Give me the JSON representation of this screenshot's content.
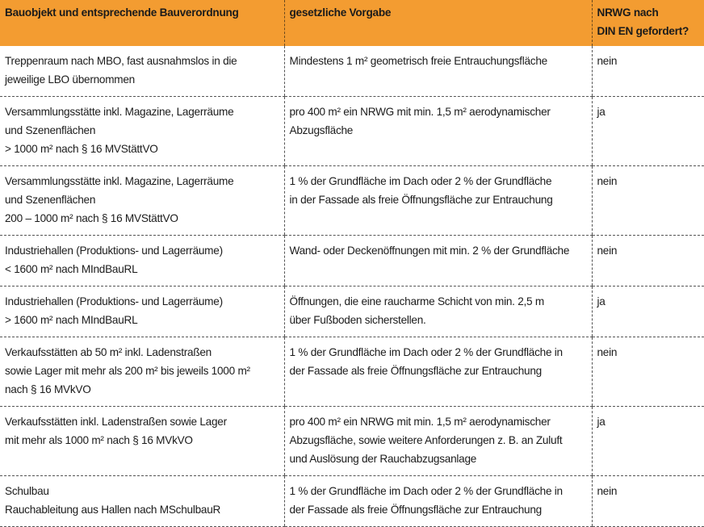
{
  "table": {
    "header": [
      [
        "Bauobjekt und entsprechende Bauverordnung"
      ],
      [
        "gesetzliche Vorgabe"
      ],
      [
        "NRWG nach",
        "DIN EN gefordert?"
      ]
    ],
    "rows": [
      [
        [
          "Treppenraum nach MBO, fast ausnahmslos in die",
          "jeweilige LBO übernommen"
        ],
        [
          "Mindestens 1 m² geometrisch freie Entrauchungsfläche"
        ],
        [
          "nein"
        ]
      ],
      [
        [
          "Versammlungsstätte inkl. Magazine, Lagerräume",
          "und Szenenflächen",
          "> 1000 m² nach § 16 MVStättVO"
        ],
        [
          "pro 400 m² ein NRWG mit min. 1,5 m² aerodynamischer",
          "Abzugsfläche"
        ],
        [
          "ja"
        ]
      ],
      [
        [
          "Versammlungsstätte inkl. Magazine, Lagerräume",
          "und Szenenflächen",
          "200 – 1000 m² nach § 16 MVStättVO"
        ],
        [
          "1 % der Grundfläche im Dach oder 2 % der Grundfläche",
          "in der Fassade als freie Öffnungsfläche zur Entrauchung"
        ],
        [
          "nein"
        ]
      ],
      [
        [
          "Industriehallen (Produktions- und Lagerräume)",
          "< 1600 m² nach MIndBauRL"
        ],
        [
          "Wand- oder Deckenöffnungen mit min. 2 % der Grundfläche"
        ],
        [
          "nein"
        ]
      ],
      [
        [
          "Industriehallen (Produktions- und Lagerräume)",
          "> 1600 m² nach MIndBauRL"
        ],
        [
          "Öffnungen, die eine raucharme Schicht von min. 2,5 m",
          "über Fußboden sicherstellen."
        ],
        [
          "ja"
        ]
      ],
      [
        [
          "Verkaufsstätten ab 50 m² inkl. Ladenstraßen",
          "sowie Lager mit mehr als 200 m² bis jeweils 1000 m²",
          "nach § 16 MVkVO"
        ],
        [
          "1 % der Grundfläche im Dach oder 2 % der Grundfläche in",
          "der Fassade als freie Öffnungsfläche zur Entrauchung"
        ],
        [
          "nein"
        ]
      ],
      [
        [
          "Verkaufsstätten inkl. Ladenstraßen sowie Lager",
          "mit mehr als 1000 m² nach § 16 MVkVO"
        ],
        [
          "pro 400 m² ein NRWG mit min. 1,5 m² aerodynamischer",
          "Abzugsfläche, sowie weitere Anforderungen z. B. an Zuluft",
          "und Auslösung der Rauchabzugsanlage"
        ],
        [
          "ja"
        ]
      ],
      [
        [
          "Schulbau",
          "Rauchableitung aus Hallen nach MSchulbauR"
        ],
        [
          "1 % der Grundfläche im Dach oder 2 % der Grundfläche in",
          "der Fassade als freie Öffnungsfläche zur Entrauchung"
        ],
        [
          "nein"
        ]
      ]
    ]
  }
}
